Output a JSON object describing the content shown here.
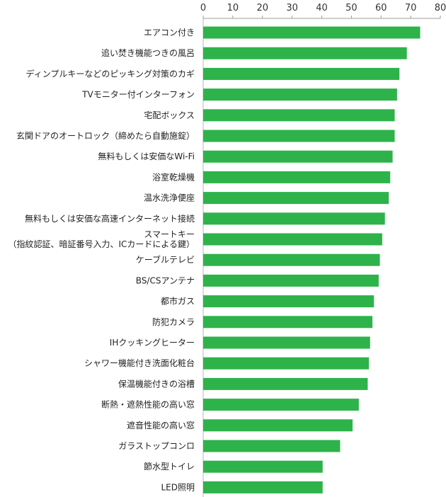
{
  "chart_data": {
    "type": "bar",
    "orientation": "horizontal",
    "title": "",
    "xlabel": "",
    "ylabel": "",
    "xlim": [
      0,
      80
    ],
    "x_ticks": [
      "0",
      "10",
      "20",
      "30",
      "40",
      "50",
      "60",
      "70",
      "80"
    ],
    "grid": false,
    "legend": "none",
    "bar_color": "#2db34a",
    "categories": [
      [
        "エアコン付き"
      ],
      [
        "追い焚き機能つきの風呂"
      ],
      [
        "ディンプルキーなどのピッキング対策のカギ"
      ],
      [
        "TVモニター付インターフォン"
      ],
      [
        "宅配ボックス"
      ],
      [
        "玄関ドアのオートロック（締めたら自動施錠）"
      ],
      [
        "無料もしくは安価なWi-Fi"
      ],
      [
        "浴室乾燥機"
      ],
      [
        "温水洗浄便座"
      ],
      [
        "無料もしくは安価な高速インターネット接続"
      ],
      [
        "スマートキー",
        "（指紋認証、暗証番号入力、ICカードによる鍵）"
      ],
      [
        "ケーブルテレビ"
      ],
      [
        "BS/CSアンテナ"
      ],
      [
        "都市ガス"
      ],
      [
        "防犯カメラ"
      ],
      [
        "IHクッキングヒーター"
      ],
      [
        "シャワー機能付き洗面化粧台"
      ],
      [
        "保温機能付きの浴槽"
      ],
      [
        "断熱・遮熱性能の高い窓"
      ],
      [
        "遮音性能の高い窓"
      ],
      [
        "ガラストップコンロ"
      ],
      [
        "節水型トイレ"
      ],
      [
        "LED照明"
      ]
    ],
    "values": [
      73.2,
      68.7,
      66.2,
      65.4,
      64.6,
      64.6,
      63.9,
      63.1,
      62.6,
      61.3,
      60.4,
      59.6,
      59.2,
      57.6,
      57.1,
      56.3,
      55.9,
      55.5,
      52.5,
      50.4,
      46.2,
      40.3,
      40.3
    ]
  }
}
